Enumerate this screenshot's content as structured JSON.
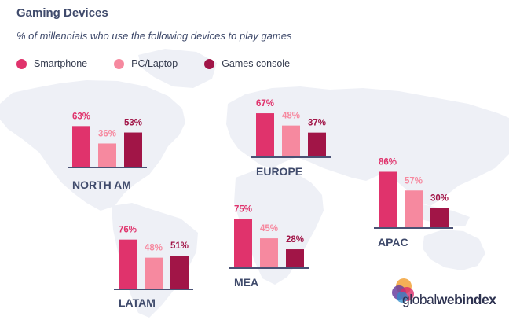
{
  "header": {
    "title": "Gaming Devices",
    "subtitle": "% of millennials who use the following devices to play games"
  },
  "colors": {
    "smartphone": "#e0336c",
    "pc_laptop": "#f6899f",
    "games_console": "#a11547",
    "map_land": "#eef0f6",
    "text_dark": "#3f4a6b",
    "baseline": "#4a5275"
  },
  "legend": [
    {
      "label": "Smartphone",
      "color": "#e0336c"
    },
    {
      "label": "PC/Laptop",
      "color": "#f6899f"
    },
    {
      "label": "Games console",
      "color": "#a11547"
    }
  ],
  "chart_data": {
    "type": "bar",
    "title": "Gaming Devices",
    "subtitle": "% of millennials who use the following devices to play games",
    "series_names": [
      "Smartphone",
      "PC/Laptop",
      "Games console"
    ],
    "ylim": [
      0,
      100
    ],
    "value_suffix": "%",
    "grid": false,
    "legend_position": "top-left",
    "regions": [
      {
        "name": "NORTH AM",
        "values": [
          63,
          36,
          53
        ]
      },
      {
        "name": "EUROPE",
        "values": [
          67,
          48,
          37
        ]
      },
      {
        "name": "APAC",
        "values": [
          86,
          57,
          30
        ]
      },
      {
        "name": "LATAM",
        "values": [
          76,
          48,
          51
        ]
      },
      {
        "name": "MEA",
        "values": [
          75,
          45,
          28
        ]
      }
    ]
  },
  "branding": {
    "logo_part1": "global",
    "logo_part2": "webindex"
  }
}
